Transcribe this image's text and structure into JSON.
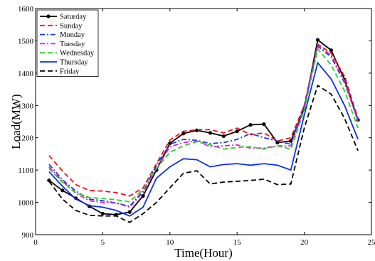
{
  "chart_data": {
    "type": "line",
    "title": "",
    "xlabel": "Time(Hour)",
    "ylabel": "Load(MW)",
    "xlim": [
      0,
      25
    ],
    "ylim": [
      900,
      1600
    ],
    "xticks": [
      "0",
      "5",
      "10",
      "15",
      "20",
      "25"
    ],
    "yticks": [
      "900",
      "1000",
      "1100",
      "1200",
      "1300",
      "1400",
      "1500",
      "1600"
    ],
    "xtick_values": [
      0,
      5,
      10,
      15,
      20,
      25
    ],
    "ytick_values": [
      900,
      1000,
      1100,
      1200,
      1300,
      1400,
      1500,
      1600
    ],
    "grid": false,
    "legend_position": "top-left",
    "x": [
      1,
      2,
      3,
      4,
      5,
      6,
      7,
      8,
      9,
      10,
      11,
      12,
      13,
      14,
      15,
      16,
      17,
      18,
      19,
      20,
      21,
      22,
      23,
      24
    ],
    "series": [
      {
        "name": "Saturday",
        "color": "#000000",
        "dash": "solid",
        "marker": "circle",
        "values": [
          1068,
          1037,
          1013,
          988,
          965,
          962,
          970,
          1020,
          1100,
          1183,
          1213,
          1223,
          1215,
          1205,
          1220,
          1240,
          1242,
          1185,
          1190,
          1290,
          1503,
          1471,
          1380,
          1255
        ]
      },
      {
        "name": "Sunday",
        "color": "#e8141c",
        "dash": "dashed",
        "marker": "none",
        "values": [
          1145,
          1097,
          1055,
          1037,
          1035,
          1030,
          1020,
          1045,
          1120,
          1193,
          1220,
          1225,
          1225,
          1215,
          1230,
          1210,
          1215,
          1190,
          1200,
          1300,
          1490,
          1462,
          1390,
          1260
        ]
      },
      {
        "name": "Monday",
        "color": "#1a3fd0",
        "dash": "dashdot",
        "marker": "none",
        "values": [
          1118,
          1070,
          1035,
          1010,
          1005,
          998,
          988,
          1035,
          1115,
          1180,
          1195,
          1192,
          1182,
          1185,
          1195,
          1213,
          1200,
          1190,
          1180,
          1300,
          1483,
          1450,
          1370,
          1255
        ]
      },
      {
        "name": "Tuesday",
        "color": "#e020d0",
        "dash": "dashdot",
        "marker": "none",
        "values": [
          1110,
          1065,
          1028,
          1005,
          1000,
          998,
          985,
          1030,
          1105,
          1172,
          1185,
          1190,
          1172,
          1175,
          1178,
          1168,
          1168,
          1175,
          1175,
          1290,
          1487,
          1455,
          1375,
          1250
        ]
      },
      {
        "name": "Wednesday",
        "color": "#2ecc2e",
        "dash": "dashed",
        "marker": "none",
        "values": [
          1105,
          1062,
          1030,
          1015,
          1012,
          1008,
          1002,
          1040,
          1105,
          1155,
          1175,
          1188,
          1178,
          1165,
          1170,
          1172,
          1165,
          1175,
          1165,
          1285,
          1475,
          1425,
          1345,
          1230
        ]
      },
      {
        "name": "Thursday",
        "color": "#1030e0",
        "dash": "solid",
        "marker": "none",
        "values": [
          1095,
          1050,
          1010,
          990,
          985,
          975,
          958,
          985,
          1075,
          1110,
          1135,
          1132,
          1110,
          1117,
          1120,
          1115,
          1120,
          1115,
          1100,
          1270,
          1432,
          1382,
          1300,
          1195
        ]
      },
      {
        "name": "Friday",
        "color": "#000000",
        "dash": "dashed",
        "marker": "none",
        "values": [
          1065,
          1010,
          975,
          960,
          958,
          958,
          938,
          965,
          1000,
          1045,
          1090,
          1098,
          1057,
          1063,
          1065,
          1068,
          1072,
          1055,
          1057,
          1230,
          1362,
          1335,
          1260,
          1160
        ]
      }
    ]
  }
}
